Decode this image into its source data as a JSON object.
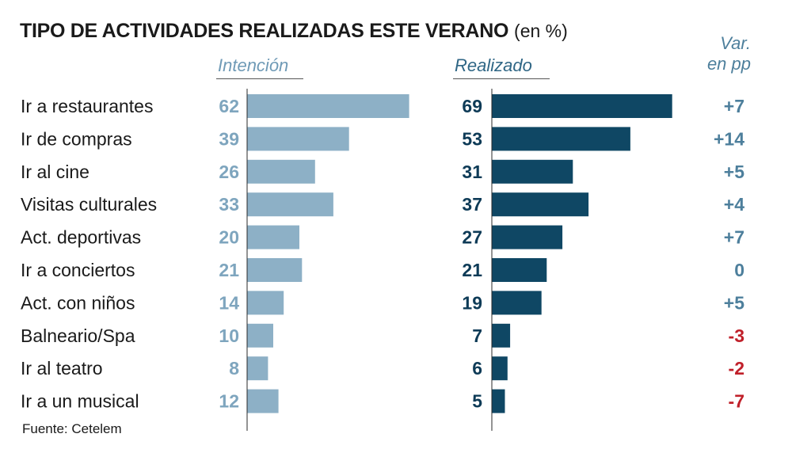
{
  "title": "TIPO DE ACTIVIDADES REALIZADAS  ESTE VERANO",
  "title_unit": "(en %)",
  "headers": {
    "intencion": "Intención",
    "realizado": "Realizado",
    "var_line1": "Var.",
    "var_line2": "en pp"
  },
  "source": "Fuente: Cetelem",
  "colors": {
    "intencion_bar": "#8db0c6",
    "intencion_text": "#7ea5be",
    "realizado_bar": "#0f4764",
    "realizado_text": "#0e3b57",
    "var_positive": "#4d7f9c",
    "var_negative": "#c0202a"
  },
  "chart_data": {
    "type": "bar",
    "orientation": "horizontal",
    "unit": "%",
    "categories": [
      "Ir a restaurantes",
      "Ir de compras",
      "Ir al cine",
      "Visitas culturales",
      "Act. deportivas",
      "Ir a conciertos",
      "Act. con niños",
      "Balneario/Spa",
      "Ir al teatro",
      "Ir a un musical"
    ],
    "series": [
      {
        "name": "Intención",
        "values": [
          62,
          39,
          26,
          33,
          20,
          21,
          14,
          10,
          8,
          12
        ]
      },
      {
        "name": "Realizado",
        "values": [
          69,
          53,
          31,
          37,
          27,
          21,
          19,
          7,
          6,
          5
        ]
      }
    ],
    "variation_pp": [
      "+7",
      "+14",
      "+5",
      "+4",
      "+7",
      "0",
      "+5",
      "-3",
      "-2",
      "-7"
    ],
    "xlim": [
      0,
      70
    ],
    "grid": false,
    "legend": "none"
  }
}
